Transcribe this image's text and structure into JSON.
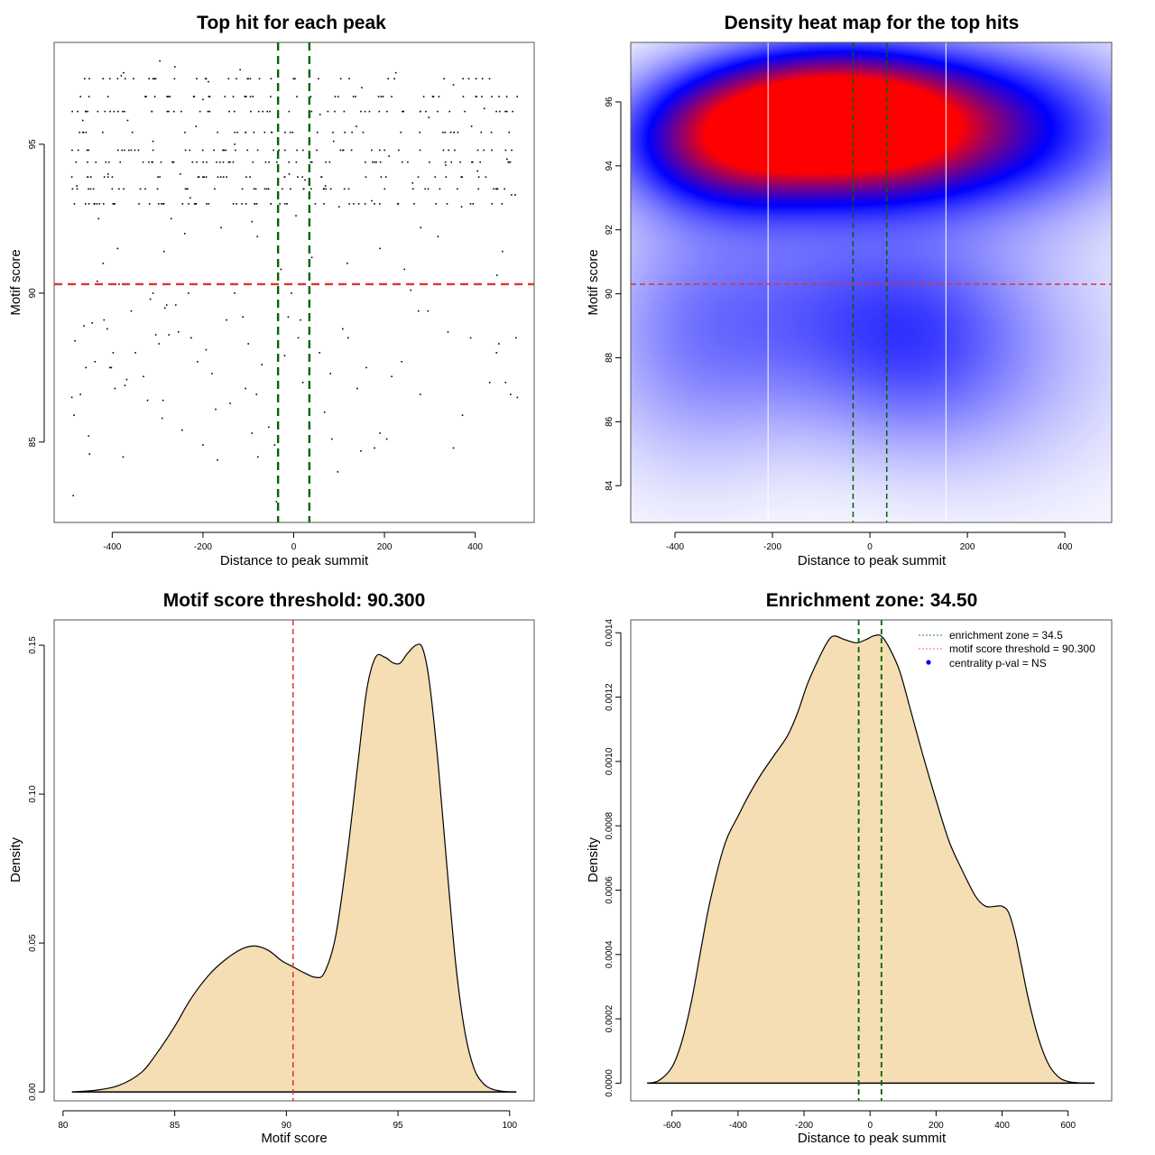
{
  "chart_data": [
    {
      "id": "scatter",
      "type": "scatter",
      "title": "Top hit for each peak",
      "xlabel": "Distance to peak summit",
      "ylabel": "Motif score",
      "xlim": [
        -528,
        530
      ],
      "ylim": [
        82.3,
        98.42
      ],
      "xticks": [
        -400,
        -200,
        0,
        200,
        400
      ],
      "xtick_labels": [
        "-400",
        "-200",
        "0",
        "200",
        "400"
      ],
      "yticks": [
        85,
        90,
        95
      ],
      "ytick_labels": [
        "85",
        "90",
        "95"
      ],
      "hlines": [
        {
          "y": 90.3,
          "color": "#dd3333",
          "style": "dashed"
        }
      ],
      "vlines": [
        {
          "x": -34.5,
          "color": "#006400",
          "style": "dashed"
        },
        {
          "x": 34.5,
          "color": "#006400",
          "style": "dashed"
        }
      ],
      "point_color": "#000000",
      "point_count_estimate": 700,
      "score_levels_dense": [
        97.2,
        96.6,
        96.1,
        95.4,
        94.8,
        94.4,
        93.9,
        93.5,
        93.0
      ],
      "points": [
        [
          -489,
          86.5
        ],
        [
          -484,
          85.9
        ],
        [
          -486,
          83.2
        ],
        [
          -482,
          88.4
        ],
        [
          -478,
          93.6
        ],
        [
          -470,
          86.6
        ],
        [
          -462,
          88.9
        ],
        [
          -458,
          87.5
        ],
        [
          -452,
          85.2
        ],
        [
          -450,
          84.6
        ],
        [
          -444,
          89.0
        ],
        [
          -438,
          87.7
        ],
        [
          -433,
          90.4
        ],
        [
          -418,
          89.1
        ],
        [
          -411,
          88.8
        ],
        [
          -405,
          87.5
        ],
        [
          -402,
          87.5
        ],
        [
          -398,
          88.0
        ],
        [
          -394,
          86.8
        ],
        [
          -385,
          90.3
        ],
        [
          -376,
          84.5
        ],
        [
          -372,
          86.9
        ],
        [
          -368,
          87.1
        ],
        [
          -358,
          89.4
        ],
        [
          -349,
          88.0
        ],
        [
          -331,
          87.2
        ],
        [
          -322,
          86.4
        ],
        [
          -316,
          89.8
        ],
        [
          -310,
          90.0
        ],
        [
          -304,
          88.6
        ],
        [
          -297,
          88.3
        ],
        [
          -290,
          85.8
        ],
        [
          -288,
          86.4
        ],
        [
          -284,
          89.5
        ],
        [
          -280,
          89.6
        ],
        [
          -275,
          88.6
        ],
        [
          -260,
          89.6
        ],
        [
          -254,
          88.7
        ],
        [
          -246,
          85.4
        ],
        [
          -232,
          90.0
        ],
        [
          -226,
          88.5
        ],
        [
          -212,
          87.7
        ],
        [
          -200,
          84.9
        ],
        [
          -193,
          88.1
        ],
        [
          -180,
          87.3
        ],
        [
          -172,
          86.1
        ],
        [
          -168,
          84.4
        ],
        [
          -148,
          89.1
        ],
        [
          -140,
          86.3
        ],
        [
          -130,
          90.0
        ],
        [
          -112,
          89.2
        ],
        [
          -106,
          86.8
        ],
        [
          -100,
          88.3
        ],
        [
          -92,
          85.3
        ],
        [
          -82,
          86.6
        ],
        [
          -79,
          84.5
        ],
        [
          -70,
          87.6
        ],
        [
          -55,
          85.5
        ],
        [
          -42,
          84.9
        ],
        [
          -38,
          83.0
        ],
        [
          -20,
          87.9
        ],
        [
          -12,
          89.2
        ],
        [
          -5,
          90.0
        ],
        [
          10,
          88.5
        ],
        [
          15,
          89.1
        ],
        [
          20,
          87.0
        ],
        [
          57,
          88.0
        ],
        [
          68,
          86.0
        ],
        [
          81,
          87.3
        ],
        [
          84,
          85.1
        ],
        [
          97,
          84.0
        ],
        [
          108,
          88.8
        ],
        [
          120,
          88.5
        ],
        [
          140,
          86.8
        ],
        [
          148,
          84.7
        ],
        [
          160,
          87.5
        ],
        [
          178,
          84.8
        ],
        [
          190,
          85.3
        ],
        [
          205,
          85.1
        ],
        [
          216,
          87.2
        ],
        [
          238,
          87.7
        ],
        [
          258,
          90.1
        ],
        [
          275,
          89.4
        ],
        [
          279,
          86.6
        ],
        [
          296,
          89.4
        ],
        [
          340,
          88.7
        ],
        [
          352,
          84.8
        ],
        [
          372,
          85.9
        ],
        [
          390,
          88.5
        ],
        [
          432,
          87.0
        ],
        [
          447,
          88.0
        ],
        [
          452,
          88.3
        ],
        [
          467,
          87.0
        ],
        [
          478,
          86.6
        ],
        [
          490,
          88.5
        ],
        [
          493,
          86.5
        ],
        [
          -475,
          94.8
        ],
        [
          -470,
          96.6
        ],
        [
          -465,
          95.8
        ],
        [
          -458,
          96.1
        ],
        [
          -452,
          94.8
        ],
        [
          -447,
          93.9
        ],
        [
          -440,
          93.0
        ],
        [
          -430,
          92.5
        ],
        [
          -420,
          91.0
        ],
        [
          -409,
          94.0
        ],
        [
          -400,
          93.5
        ],
        [
          -388,
          91.5
        ],
        [
          -380,
          97.3
        ],
        [
          -375,
          97.4
        ],
        [
          -366,
          95.8
        ],
        [
          -350,
          94.8
        ],
        [
          -338,
          93.5
        ],
        [
          -325,
          96.6
        ],
        [
          -310,
          95.1
        ],
        [
          -295,
          97.8
        ],
        [
          -286,
          91.4
        ],
        [
          -270,
          92.5
        ],
        [
          -262,
          97.6
        ],
        [
          -250,
          94.0
        ],
        [
          -240,
          92.0
        ],
        [
          -228,
          93.2
        ],
        [
          -215,
          95.6
        ],
        [
          -200,
          96.5
        ],
        [
          -188,
          97.1
        ],
        [
          -170,
          94.4
        ],
        [
          -160,
          92.2
        ],
        [
          -148,
          93.9
        ],
        [
          -130,
          95.0
        ],
        [
          -118,
          97.5
        ],
        [
          -105,
          93.0
        ],
        [
          -92,
          92.4
        ],
        [
          -80,
          91.9
        ],
        [
          -64,
          95.4
        ],
        [
          -50,
          97.2
        ],
        [
          -28,
          90.8
        ],
        [
          -10,
          94.0
        ],
        [
          5,
          92.6
        ],
        [
          25,
          93.8
        ],
        [
          40,
          91.2
        ],
        [
          58,
          96.0
        ],
        [
          70,
          93.6
        ],
        [
          88,
          95.1
        ],
        [
          100,
          92.9
        ],
        [
          118,
          91.0
        ],
        [
          138,
          95.6
        ],
        [
          150,
          96.9
        ],
        [
          172,
          93.1
        ],
        [
          190,
          91.5
        ],
        [
          210,
          94.6
        ],
        [
          225,
          97.4
        ],
        [
          244,
          90.8
        ],
        [
          262,
          93.7
        ],
        [
          280,
          92.2
        ],
        [
          298,
          95.9
        ],
        [
          318,
          91.9
        ],
        [
          335,
          94.3
        ],
        [
          352,
          97.0
        ],
        [
          370,
          92.9
        ],
        [
          392,
          95.6
        ],
        [
          405,
          94.1
        ],
        [
          420,
          96.2
        ],
        [
          437,
          93.0
        ],
        [
          448,
          90.6
        ],
        [
          460,
          91.4
        ],
        [
          470,
          94.5
        ],
        [
          480,
          93.3
        ],
        [
          488,
          93.3
        ]
      ]
    },
    {
      "id": "heatmap",
      "type": "heatmap",
      "title": "Density heat map for the top hits",
      "xlabel": "Distance to peak summit",
      "ylabel": "Motif score",
      "xlim": [
        -490.7,
        496
      ],
      "ylim": [
        82.85,
        97.86
      ],
      "xticks": [
        -400,
        -200,
        0,
        200,
        400
      ],
      "xtick_labels": [
        "-400",
        "-200",
        "0",
        "200",
        "400"
      ],
      "yticks": [
        84,
        86,
        88,
        90,
        92,
        94,
        96
      ],
      "ytick_labels": [
        "84",
        "86",
        "88",
        "90",
        "92",
        "94",
        "96"
      ],
      "colorscale": [
        "#ffffff",
        "#0000ff",
        "#ff0000"
      ],
      "hotspots": [
        {
          "x": -100,
          "y": 95.6,
          "weight": 1.0,
          "sx": 190,
          "sy": 1.4
        },
        {
          "x": 40,
          "y": 95.0,
          "weight": 0.55,
          "sx": 170,
          "sy": 1.5
        },
        {
          "x": -300,
          "y": 94.6,
          "weight": 0.55,
          "sx": 150,
          "sy": 1.4
        },
        {
          "x": 320,
          "y": 95.2,
          "weight": 0.38,
          "sx": 180,
          "sy": 1.8
        },
        {
          "x": -120,
          "y": 89.5,
          "weight": 0.22,
          "sx": 220,
          "sy": 2.6
        },
        {
          "x": 100,
          "y": 88.5,
          "weight": 0.22,
          "sx": 160,
          "sy": 2.4
        },
        {
          "x": -380,
          "y": 88.5,
          "weight": 0.16,
          "sx": 150,
          "sy": 3.0
        },
        {
          "x": 330,
          "y": 88.0,
          "weight": 0.1,
          "sx": 200,
          "sy": 3.0
        }
      ],
      "white_vlines": [
        -209,
        156
      ],
      "hlines": [
        {
          "y": 90.3,
          "color": "#dd3333",
          "style": "dashed"
        }
      ],
      "vlines": [
        {
          "x": -34.5,
          "color": "#006400",
          "style": "dashed"
        },
        {
          "x": 34.5,
          "color": "#006400",
          "style": "dashed"
        }
      ]
    },
    {
      "id": "score-density",
      "type": "area",
      "title": "Motif score threshold: 90.300",
      "xlabel": "Motif score",
      "ylabel": "Density",
      "xlim": [
        79.6,
        101.1
      ],
      "ylim": [
        -0.003,
        0.1585
      ],
      "xticks": [
        80,
        85,
        90,
        95,
        100
      ],
      "xtick_labels": [
        "80",
        "85",
        "90",
        "95",
        "100"
      ],
      "yticks": [
        0.0,
        0.05,
        0.1,
        0.15
      ],
      "ytick_labels": [
        "0.00",
        "0.05",
        "0.10",
        "0.15"
      ],
      "fill": "#f5deb3",
      "x": [
        80.4,
        81.5,
        82.5,
        83.5,
        84.2,
        85.0,
        85.7,
        86.5,
        87.2,
        88.0,
        88.6,
        89.2,
        89.8,
        90.3,
        90.8,
        91.3,
        91.7,
        92.2,
        92.7,
        93.2,
        93.6,
        94.0,
        94.4,
        94.8,
        95.1,
        95.4,
        95.8,
        96.1,
        96.4,
        96.8,
        97.2,
        97.6,
        98.0,
        98.4,
        98.8,
        99.2,
        99.7,
        100.3
      ],
      "y": [
        0.0,
        0.0006,
        0.0022,
        0.0065,
        0.013,
        0.022,
        0.031,
        0.039,
        0.044,
        0.048,
        0.049,
        0.0475,
        0.044,
        0.042,
        0.04,
        0.0385,
        0.04,
        0.052,
        0.078,
        0.11,
        0.135,
        0.146,
        0.146,
        0.144,
        0.144,
        0.147,
        0.15,
        0.149,
        0.138,
        0.11,
        0.075,
        0.042,
        0.02,
        0.008,
        0.003,
        0.001,
        0.0002,
        0.0
      ],
      "vlines": [
        {
          "x": 90.3,
          "color": "#dd3333",
          "style": "dashed"
        }
      ]
    },
    {
      "id": "distance-density",
      "type": "area",
      "title": "Enrichment zone: 34.50",
      "xlabel": "Distance to peak summit",
      "ylabel": "Density",
      "xlim": [
        -725,
        732
      ],
      "ylim": [
        -5.5e-05,
        0.00144
      ],
      "xticks": [
        -600,
        -400,
        -200,
        0,
        200,
        400,
        600
      ],
      "xtick_labels": [
        "-600",
        "-400",
        "-200",
        "0",
        "200",
        "400",
        "600"
      ],
      "yticks": [
        0.0,
        0.0002,
        0.0004,
        0.0006,
        0.0008,
        0.001,
        0.0012,
        0.0014
      ],
      "ytick_labels": [
        "0.0000",
        "0.0002",
        "0.0004",
        "0.0006",
        "0.0008",
        "0.0010",
        "0.0012",
        "0.0014"
      ],
      "fill": "#f5deb3",
      "x": [
        -675,
        -640,
        -600,
        -570,
        -540,
        -510,
        -490,
        -470,
        -450,
        -430,
        -400,
        -370,
        -330,
        -290,
        -250,
        -220,
        -190,
        -160,
        -130,
        -110,
        -80,
        -50,
        -34,
        -10,
        10,
        34,
        60,
        90,
        120,
        160,
        200,
        240,
        280,
        320,
        350,
        380,
        400,
        420,
        440,
        460,
        480,
        510,
        540,
        570,
        600,
        640,
        680
      ],
      "y": [
        0.0,
        8e-06,
        5e-05,
        0.00013,
        0.00026,
        0.00043,
        0.00054,
        0.00063,
        0.00071,
        0.00077,
        0.00083,
        0.00089,
        0.00096,
        0.00102,
        0.00108,
        0.00115,
        0.00124,
        0.00131,
        0.00137,
        0.00139,
        0.00138,
        0.00137,
        0.00137,
        0.00138,
        0.00139,
        0.00139,
        0.00135,
        0.00128,
        0.00117,
        0.00102,
        0.00088,
        0.00075,
        0.00066,
        0.00058,
        0.00055,
        0.00055,
        0.00055,
        0.00053,
        0.00046,
        0.00036,
        0.00026,
        0.00014,
        6e-05,
        2e-05,
        5e-06,
        5e-07,
        0.0
      ],
      "vlines": [
        {
          "x": -34.5,
          "color": "#006400",
          "style": "dashed"
        },
        {
          "x": 34.5,
          "color": "#006400",
          "style": "dashed"
        }
      ],
      "legend": {
        "position": "top-right",
        "entries": [
          {
            "label": "enrichment zone = 34.5",
            "color": "#228b22",
            "kind": "dotted-line"
          },
          {
            "label": "motif score threshold = 90.300",
            "color": "#ff6666",
            "kind": "dotted-line"
          },
          {
            "label": "centrality p-val = NS",
            "color": "#0000ff",
            "kind": "point"
          }
        ]
      }
    }
  ]
}
